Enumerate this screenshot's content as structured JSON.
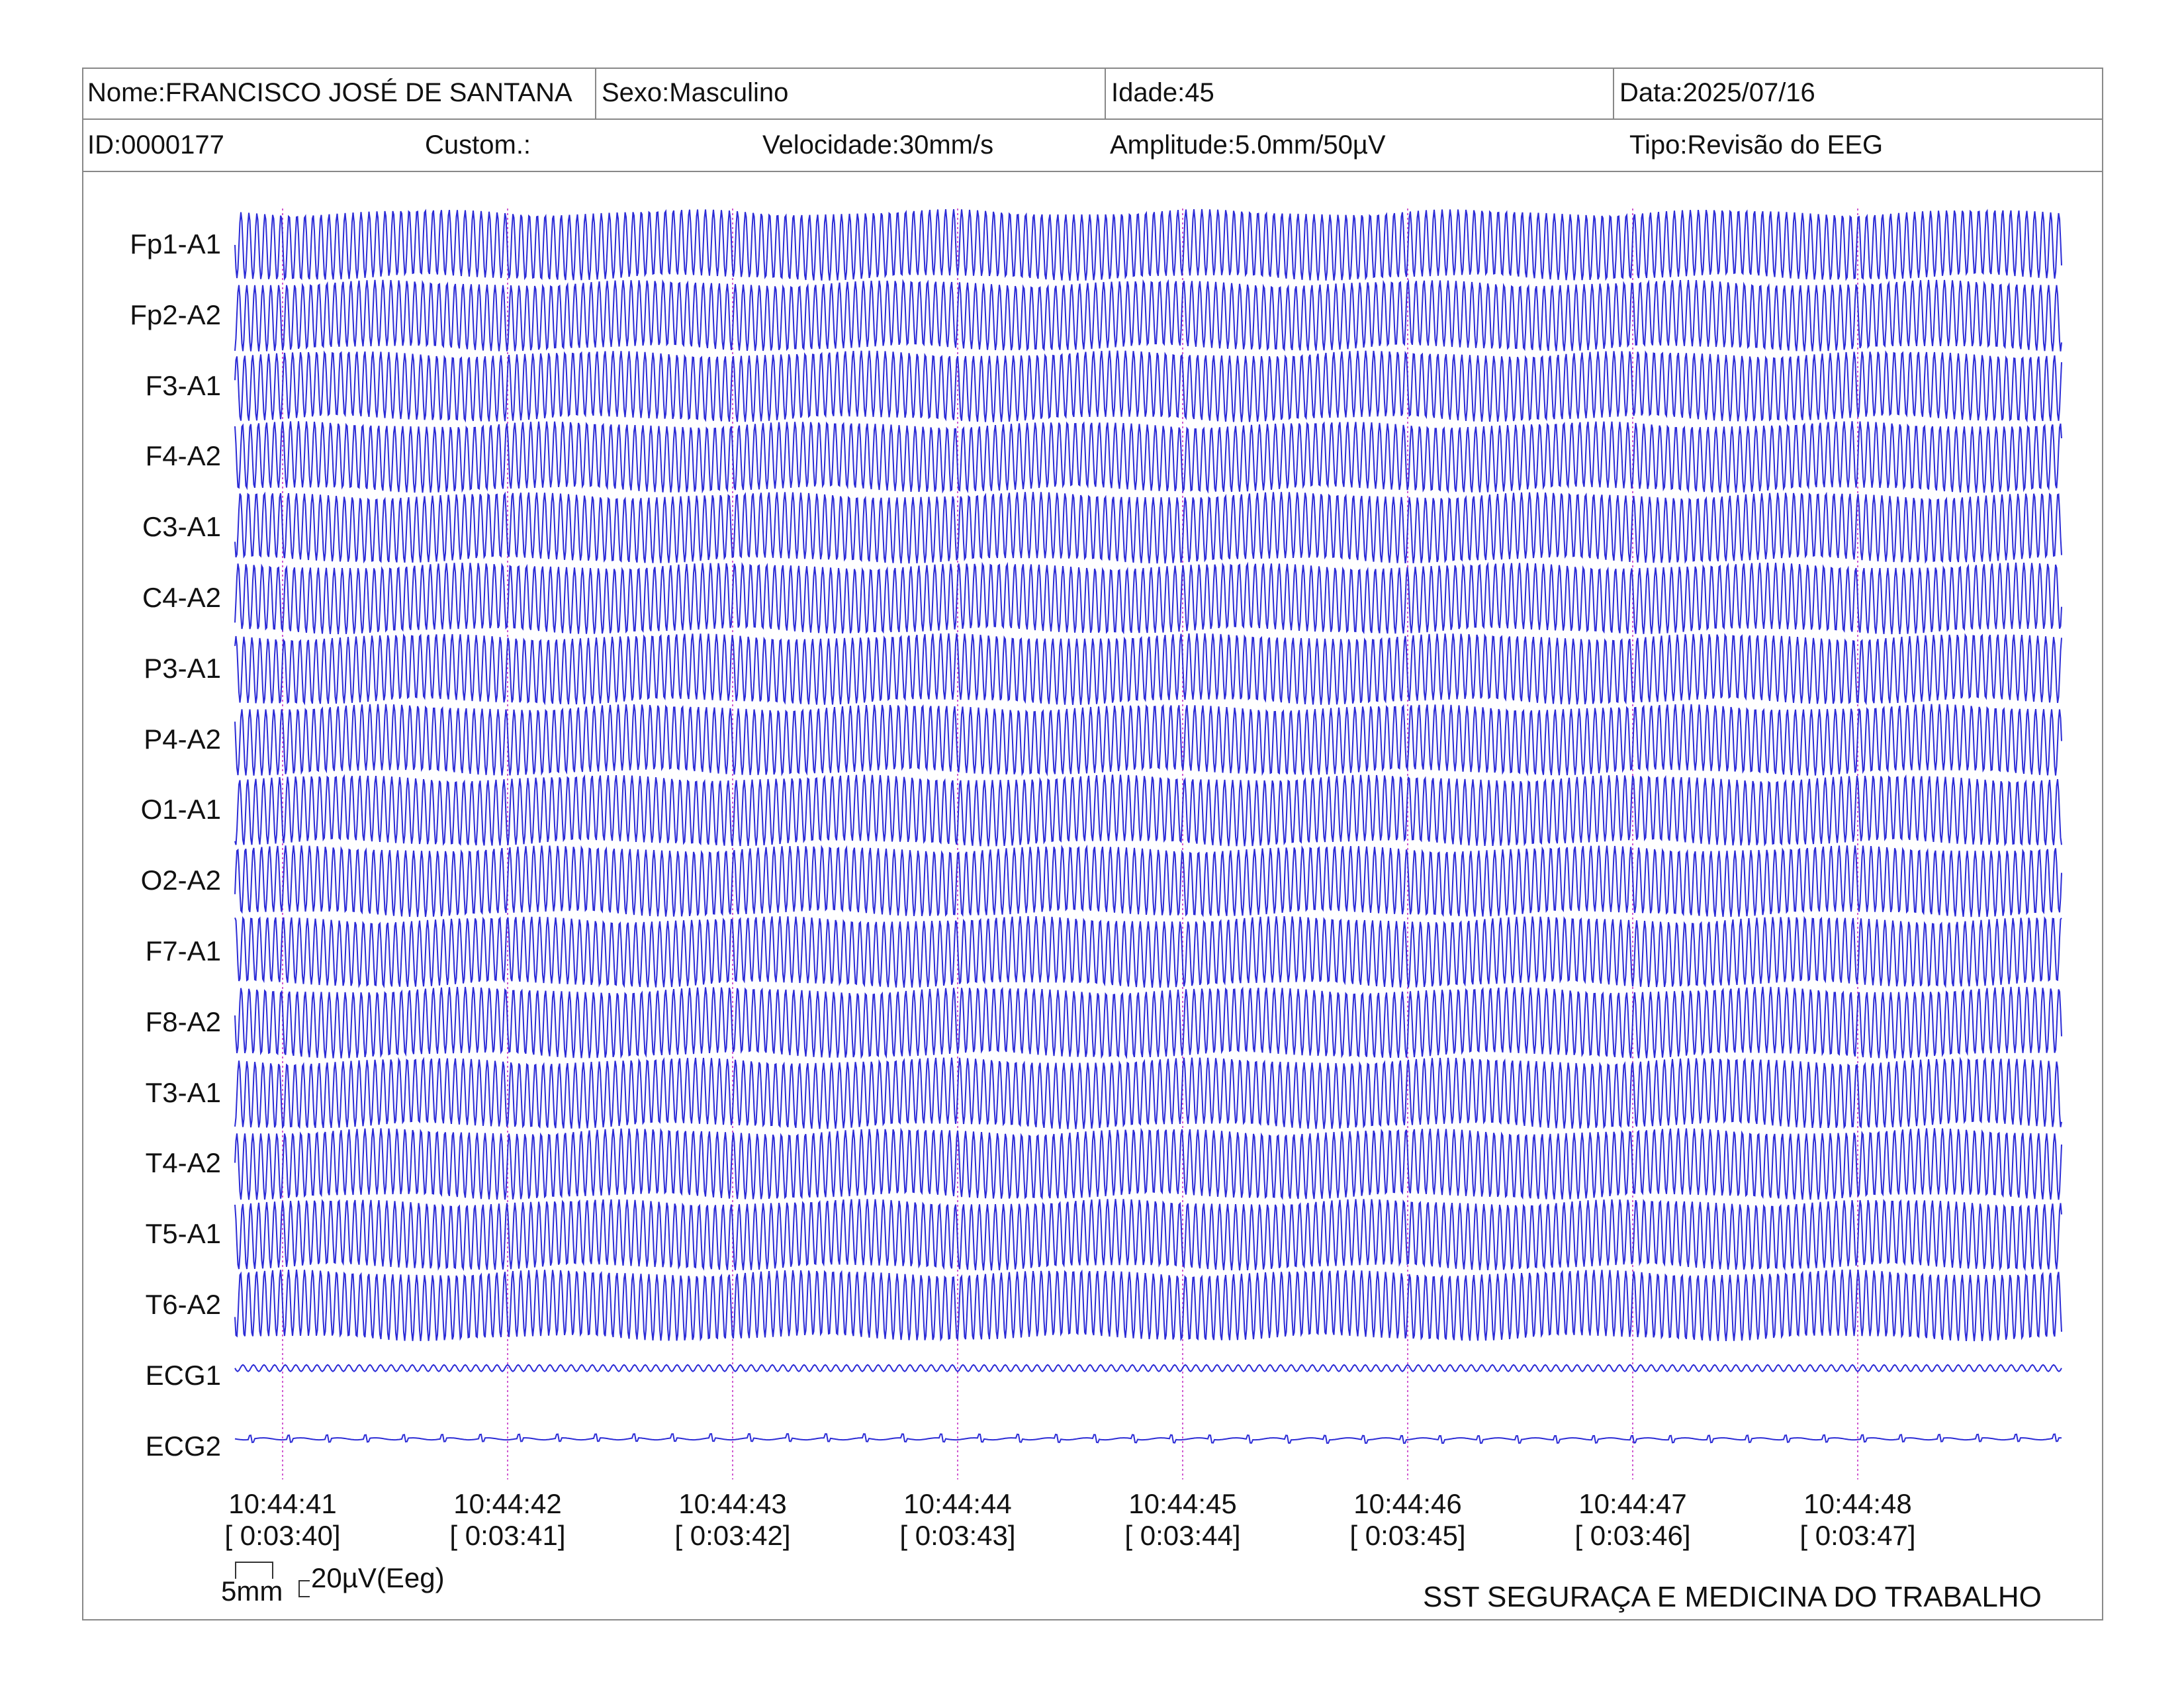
{
  "header": {
    "name": "Nome:FRANCISCO JOSÉ DE SANTANA",
    "sex": "Sexo:Masculino",
    "age": "Idade:45",
    "date": "Data:2025/07/16",
    "id": "ID:0000177",
    "custom": "Custom.:",
    "speed": "Velocidade:30mm/s",
    "amplitude": "Amplitude:5.0mm/50µV",
    "type": "Tipo:Revisão do EEG"
  },
  "channels": [
    {
      "label": "Fp1-A1",
      "kind": "eeg"
    },
    {
      "label": "Fp2-A2",
      "kind": "eeg"
    },
    {
      "label": "F3-A1",
      "kind": "eeg"
    },
    {
      "label": "F4-A2",
      "kind": "eeg"
    },
    {
      "label": "C3-A1",
      "kind": "eeg"
    },
    {
      "label": "C4-A2",
      "kind": "eeg"
    },
    {
      "label": "P3-A1",
      "kind": "eeg"
    },
    {
      "label": "P4-A2",
      "kind": "eeg"
    },
    {
      "label": "O1-A1",
      "kind": "eeg"
    },
    {
      "label": "O2-A2",
      "kind": "eeg"
    },
    {
      "label": "F7-A1",
      "kind": "eeg"
    },
    {
      "label": "F8-A2",
      "kind": "eeg"
    },
    {
      "label": "T3-A1",
      "kind": "eeg"
    },
    {
      "label": "T4-A2",
      "kind": "eeg"
    },
    {
      "label": "T5-A1",
      "kind": "eeg"
    },
    {
      "label": "T6-A2",
      "kind": "eeg"
    },
    {
      "label": "ECG1",
      "kind": "ecg1"
    },
    {
      "label": "ECG2",
      "kind": "ecg2"
    }
  ],
  "time_marks": [
    {
      "clock": "10:44:41",
      "elapsed": "[ 0:03:40]"
    },
    {
      "clock": "10:44:42",
      "elapsed": "[ 0:03:41]"
    },
    {
      "clock": "10:44:43",
      "elapsed": "[ 0:03:42]"
    },
    {
      "clock": "10:44:44",
      "elapsed": "[ 0:03:43]"
    },
    {
      "clock": "10:44:45",
      "elapsed": "[ 0:03:44]"
    },
    {
      "clock": "10:44:46",
      "elapsed": "[ 0:03:45]"
    },
    {
      "clock": "10:44:47",
      "elapsed": "[ 0:03:46]"
    },
    {
      "clock": "10:44:48",
      "elapsed": "[ 0:03:47]"
    }
  ],
  "scale": {
    "time_label": "5mm",
    "amplitude_label": "20µV(Eeg)"
  },
  "footer": {
    "company": "SST SEGURAÇA E MEDICINA DO TRABALHO"
  },
  "colors": {
    "trace": "#2b2bd6",
    "marker": "#d05ad0",
    "border": "#888888"
  }
}
